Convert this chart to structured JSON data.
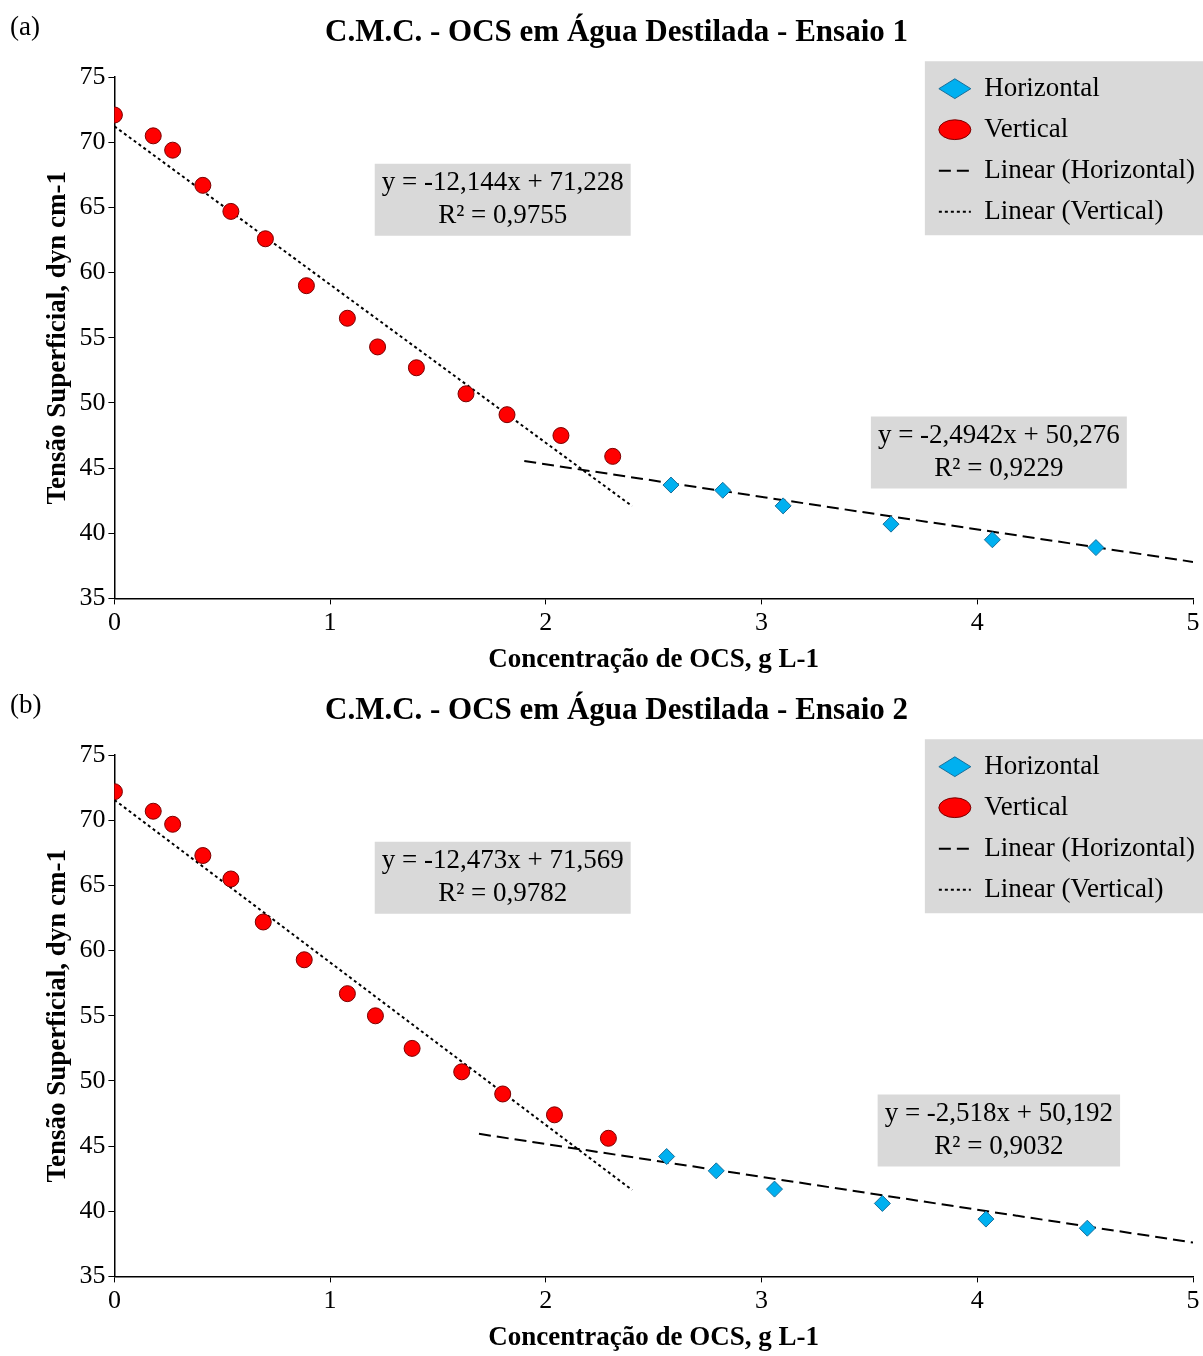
{
  "chart_data": [
    {
      "type": "scatter",
      "title": "C.M.C. - OCS em Água Destilada - Ensaio 1",
      "xlabel": "Concentração de OCS, g L-1",
      "ylabel": "Tensão Superficial, dyn cm-1",
      "xlim": [
        0,
        5
      ],
      "xticks": [
        0,
        1,
        2,
        3,
        4,
        5
      ],
      "ylim": [
        35,
        75
      ],
      "yticks": [
        35,
        40,
        45,
        50,
        55,
        60,
        65,
        70,
        75
      ],
      "grid": false,
      "legend": "top right",
      "annotations": [
        "(a)",
        "y = -12,144x + 71,228\nR² = 0,9755",
        "y = -2,4942x + 50,276\nR² = 0,9229"
      ],
      "series": [
        {
          "name": "Horizontal",
          "type": "scatter",
          "marker": "diamond",
          "color": "#00b0f0",
          "x": [
            2.58,
            2.82,
            3.1,
            3.6,
            4.07,
            4.55
          ],
          "values": [
            43.7,
            43.3,
            42.1,
            40.7,
            39.5,
            38.9
          ]
        },
        {
          "name": "Vertical",
          "type": "scatter",
          "marker": "circle",
          "color": "#ff0000",
          "x": [
            0,
            0.18,
            0.27,
            0.41,
            0.54,
            0.7,
            0.89,
            1.08,
            1.22,
            1.4,
            1.63,
            1.82,
            2.07,
            2.31
          ],
          "values": [
            72.1,
            70.5,
            69.4,
            66.7,
            64.7,
            62.6,
            59.0,
            56.5,
            54.3,
            52.7,
            50.7,
            49.1,
            47.5,
            45.9
          ]
        },
        {
          "name": "Linear (Horizontal)",
          "type": "line",
          "line_style": "dashed",
          "color": "#000000",
          "x": [
            1.9,
            5
          ],
          "values": [
            45.54,
            37.8
          ]
        },
        {
          "name": "Linear (Vertical)",
          "type": "line",
          "line_style": "dotted",
          "color": "#000000",
          "x": [
            0,
            2.4
          ],
          "values": [
            71.23,
            42.08
          ]
        }
      ]
    },
    {
      "type": "scatter",
      "title": "C.M.C. - OCS em Água Destilada - Ensaio 2",
      "xlabel": "Concentração de OCS, g L-1",
      "ylabel": "Tensão Superficial, dyn cm-1",
      "xlim": [
        0,
        5
      ],
      "xticks": [
        0,
        1,
        2,
        3,
        4,
        5
      ],
      "ylim": [
        35,
        75
      ],
      "yticks": [
        35,
        40,
        45,
        50,
        55,
        60,
        65,
        70,
        75
      ],
      "grid": false,
      "legend": "top right",
      "annotations": [
        "(b)",
        "y = -12,473x + 71,569\nR² = 0,9782",
        "y = -2,518x + 50,192\nR² = 0,9032"
      ],
      "series": [
        {
          "name": "Horizontal",
          "type": "scatter",
          "marker": "diamond",
          "color": "#00b0f0",
          "x": [
            2.56,
            2.79,
            3.06,
            3.56,
            4.04,
            4.51
          ],
          "values": [
            44.2,
            43.1,
            41.7,
            40.6,
            39.4,
            38.7
          ]
        },
        {
          "name": "Vertical",
          "type": "scatter",
          "marker": "circle",
          "color": "#ff0000",
          "x": [
            0,
            0.18,
            0.27,
            0.41,
            0.54,
            0.69,
            0.88,
            1.08,
            1.21,
            1.38,
            1.61,
            1.8,
            2.04,
            2.29
          ],
          "values": [
            72.2,
            70.7,
            69.7,
            67.3,
            65.5,
            62.2,
            59.3,
            56.7,
            55.0,
            52.5,
            50.7,
            49.0,
            47.4,
            45.6
          ]
        },
        {
          "name": "Linear (Horizontal)",
          "type": "line",
          "line_style": "dashed",
          "color": "#000000",
          "x": [
            1.69,
            5
          ],
          "values": [
            45.94,
            37.6
          ]
        },
        {
          "name": "Linear (Vertical)",
          "type": "line",
          "line_style": "dotted",
          "color": "#000000",
          "x": [
            0,
            2.4
          ],
          "values": [
            71.57,
            41.63
          ]
        }
      ]
    }
  ]
}
